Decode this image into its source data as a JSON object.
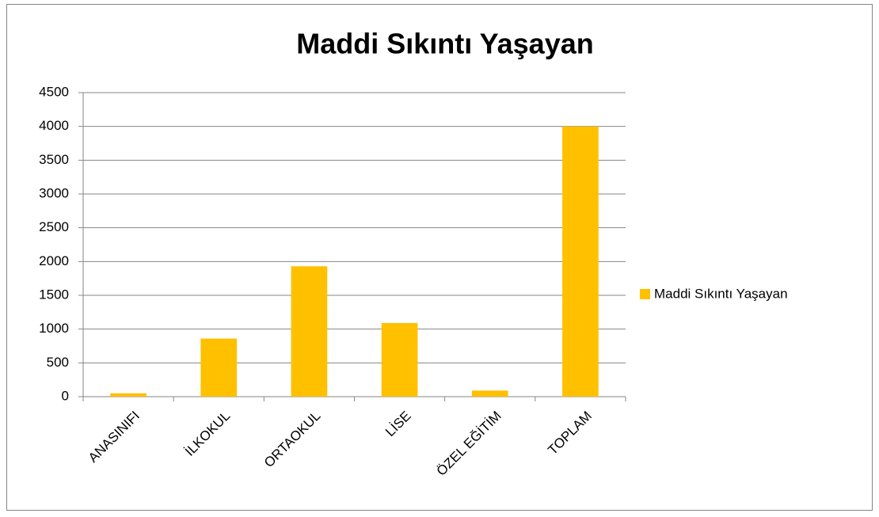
{
  "chart_data": {
    "type": "bar",
    "title": "Maddi Sıkıntı Yaşayan",
    "categories": [
      "ANASINIFI",
      "İLKOKUL",
      "ORTAOKUL",
      "LİSE",
      "ÖZEL EĞİTİM",
      "TOPLAM"
    ],
    "series": [
      {
        "name": "Maddi Sıkıntı Yaşayan",
        "color": "#ffc000",
        "values": [
          50,
          860,
          1930,
          1090,
          90,
          4000
        ]
      }
    ],
    "ylim": [
      0,
      4500
    ],
    "yticks": [
      0,
      500,
      1000,
      1500,
      2000,
      2500,
      3000,
      3500,
      4000,
      4500
    ],
    "grid": true,
    "legend": "right"
  }
}
